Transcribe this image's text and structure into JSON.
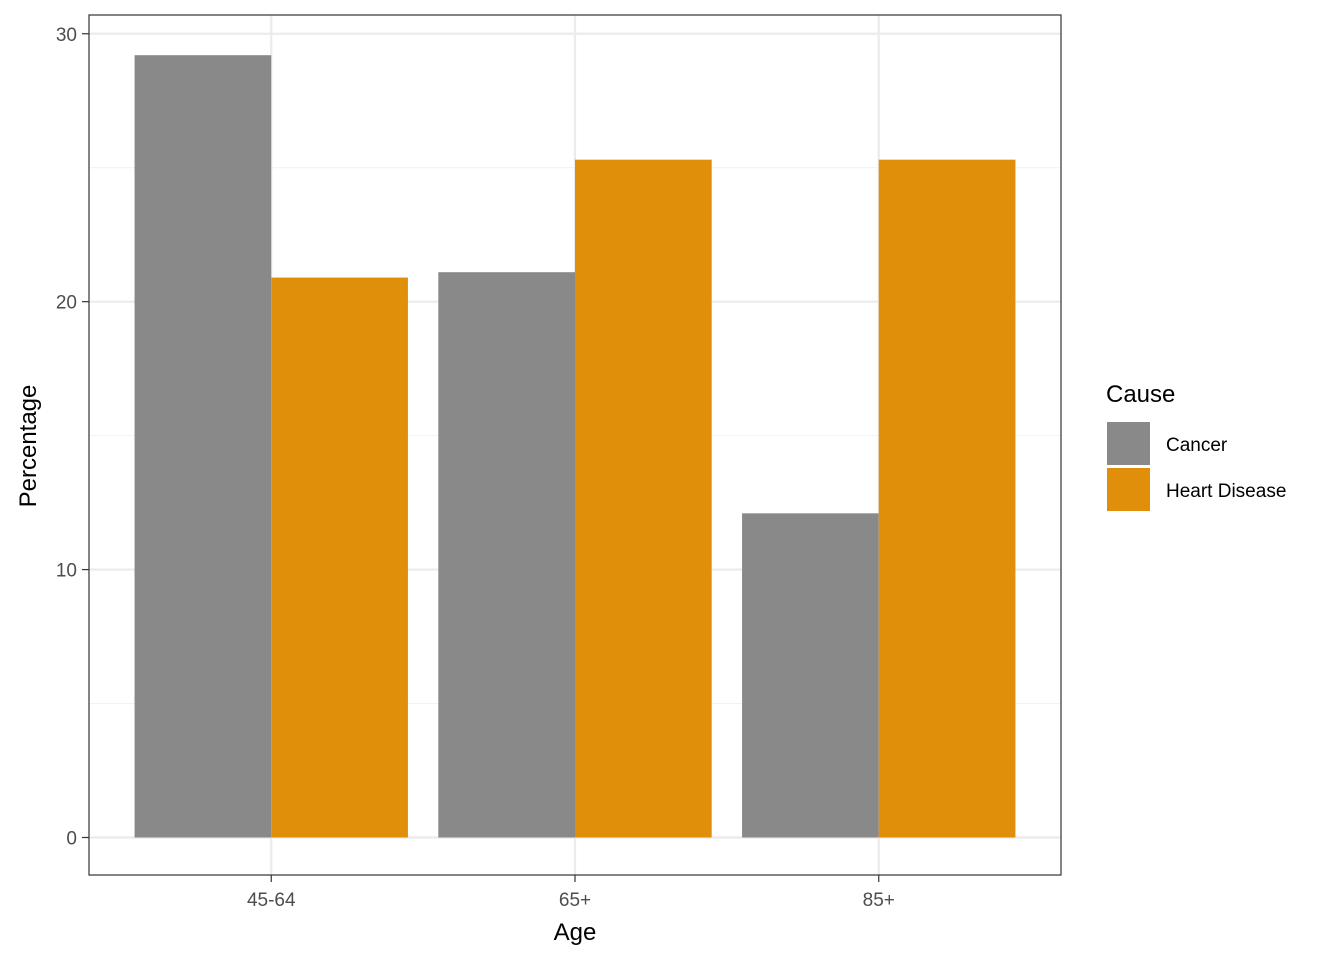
{
  "chart_data": {
    "type": "bar",
    "xlabel": "Age",
    "ylabel": "Percentage",
    "categories": [
      "45-64",
      "65+",
      "85+"
    ],
    "series": [
      {
        "name": "Cancer",
        "values": [
          29.2,
          21.1,
          12.1
        ],
        "color": "#898989"
      },
      {
        "name": "Heart Disease",
        "values": [
          20.9,
          25.3,
          25.3
        ],
        "color": "#DF8F0A"
      }
    ],
    "ylim": [
      -1.4,
      30.7
    ],
    "yticks": [
      0,
      10,
      20,
      30
    ],
    "grid": true,
    "legend": {
      "title": "Cause",
      "position": "right"
    },
    "colors": {
      "panel_border": "#333333",
      "grid_major": "#ebebeb",
      "grid_minor": "#f2f2f2",
      "tick_text": "#4d4d4d"
    }
  }
}
